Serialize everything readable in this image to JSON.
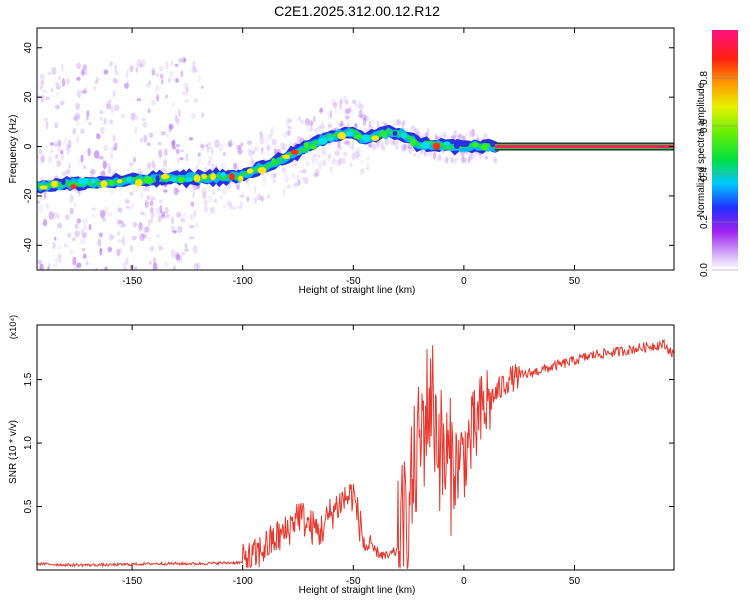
{
  "figure": {
    "title": "C2E1.2025.312.00.12.R12"
  },
  "chart_data": [
    {
      "type": "heatmap",
      "name": "spectrogram",
      "xlabel": "Height of straight line (km)",
      "ylabel": "Frequency (Hz)",
      "xlim": [
        -193,
        95
      ],
      "ylim": [
        -50,
        48
      ],
      "xticks": [
        -150,
        -100,
        -50,
        0,
        50
      ],
      "yticks": [
        -40,
        -20,
        0,
        20,
        40
      ],
      "trace": {
        "x": [
          -193,
          -175,
          -155,
          -135,
          -115,
          -100,
          -90,
          -80,
          -70,
          -60,
          -50,
          -45,
          -40,
          -33,
          -28,
          -20,
          -10,
          0,
          10,
          15,
          95
        ],
        "y": [
          -16,
          -15,
          -14,
          -13,
          -12.5,
          -12,
          -8,
          -4,
          0,
          4,
          6,
          3,
          4.5,
          6,
          5,
          1,
          0.5,
          0,
          0,
          0,
          0
        ]
      },
      "colorbar": {
        "label": "Normalized spectral amplitude",
        "ticks": [
          0.0,
          0.2,
          0.4,
          0.6,
          0.8
        ],
        "range": [
          0,
          1
        ]
      }
    },
    {
      "type": "line",
      "name": "snr",
      "xlabel": "Height of straight line (km)",
      "ylabel": "SNR (10 * v/v)",
      "multiplier": "(x10⁴)",
      "xlim": [
        -193,
        95
      ],
      "ylim": [
        0,
        1.93
      ],
      "xticks": [
        -150,
        -100,
        -50,
        0,
        50
      ],
      "yticks": [
        0.5,
        1.0,
        1.5
      ],
      "ytick_labels": [
        "0.5",
        "1.0",
        "1.5"
      ],
      "color": "#e8382e",
      "series": [
        {
          "name": "SNR",
          "x": [
            -193,
            -180,
            -160,
            -140,
            -120,
            -100,
            -95,
            -90,
            -85,
            -80,
            -75,
            -70,
            -65,
            -60,
            -55,
            -50,
            -45,
            -40,
            -35,
            -30,
            -25,
            -20,
            -15,
            -10,
            -5,
            0,
            5,
            10,
            15,
            20,
            30,
            40,
            50,
            60,
            70,
            80,
            90,
            95
          ],
          "y": [
            0.05,
            0.04,
            0.04,
            0.05,
            0.05,
            0.06,
            0.1,
            0.18,
            0.25,
            0.3,
            0.45,
            0.35,
            0.3,
            0.45,
            0.55,
            0.6,
            0.2,
            0.15,
            0.1,
            0.15,
            0.5,
            1.0,
            1.4,
            0.9,
            0.8,
            0.9,
            1.1,
            1.3,
            1.4,
            1.5,
            1.55,
            1.6,
            1.65,
            1.7,
            1.72,
            1.75,
            1.78,
            1.7
          ]
        }
      ]
    }
  ]
}
